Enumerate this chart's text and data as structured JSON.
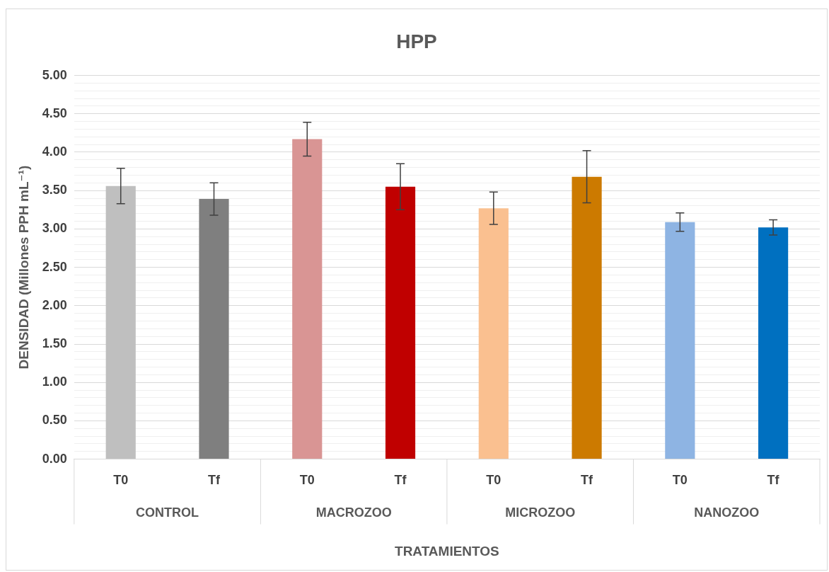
{
  "chart_data": {
    "type": "bar",
    "title": "HPP",
    "xlabel": "TRATAMIENTOS",
    "ylabel": "DENSIDAD (Millones PPH mL⁻¹)",
    "categories": [
      "T0",
      "Tf",
      "T0",
      "Tf",
      "T0",
      "Tf",
      "T0",
      "Tf"
    ],
    "values": [
      3.56,
      3.39,
      4.17,
      3.55,
      3.27,
      3.68,
      3.09,
      3.02
    ],
    "errors": [
      0.23,
      0.21,
      0.22,
      0.3,
      0.21,
      0.34,
      0.12,
      0.1
    ],
    "colors": [
      "#bfbfbf",
      "#7f7f7f",
      "#d99594",
      "#c00000",
      "#fac090",
      "#cc7a00",
      "#8eb4e3",
      "#0070c0"
    ],
    "annotations": [
      "CONTROL",
      "MACROZOO",
      "MICROZOO",
      "NANOZOO"
    ],
    "ylim": [
      0,
      5
    ],
    "yticks": [
      {
        "value": 0,
        "label": "0.00"
      },
      {
        "value": 0.1,
        "label": null
      },
      {
        "value": 0.2,
        "label": null
      },
      {
        "value": 0.3,
        "label": null
      },
      {
        "value": 0.4,
        "label": null
      },
      {
        "value": 0.5,
        "label": "0.50"
      },
      {
        "value": 0.6,
        "label": null
      },
      {
        "value": 0.7,
        "label": null
      },
      {
        "value": 0.8,
        "label": null
      },
      {
        "value": 0.9,
        "label": null
      },
      {
        "value": 1,
        "label": "1.00"
      },
      {
        "value": 1.1,
        "label": null
      },
      {
        "value": 1.2,
        "label": null
      },
      {
        "value": 1.3,
        "label": null
      },
      {
        "value": 1.4,
        "label": null
      },
      {
        "value": 1.5,
        "label": "1.50"
      },
      {
        "value": 1.6,
        "label": null
      },
      {
        "value": 1.7,
        "label": null
      },
      {
        "value": 1.8,
        "label": null
      },
      {
        "value": 1.9,
        "label": null
      },
      {
        "value": 2,
        "label": "2.00"
      },
      {
        "value": 2.1,
        "label": null
      },
      {
        "value": 2.2,
        "label": null
      },
      {
        "value": 2.3,
        "label": null
      },
      {
        "value": 2.4,
        "label": null
      },
      {
        "value": 2.5,
        "label": "2.50"
      },
      {
        "value": 2.6,
        "label": null
      },
      {
        "value": 2.7,
        "label": null
      },
      {
        "value": 2.8,
        "label": null
      },
      {
        "value": 2.9,
        "label": null
      },
      {
        "value": 3,
        "label": "3.00"
      },
      {
        "value": 3.1,
        "label": null
      },
      {
        "value": 3.2,
        "label": null
      },
      {
        "value": 3.3,
        "label": null
      },
      {
        "value": 3.4,
        "label": null
      },
      {
        "value": 3.5,
        "label": "3.50"
      },
      {
        "value": 3.6,
        "label": null
      },
      {
        "value": 3.7,
        "label": null
      },
      {
        "value": 3.8,
        "label": null
      },
      {
        "value": 3.9,
        "label": null
      },
      {
        "value": 4,
        "label": "4.00"
      },
      {
        "value": 4.1,
        "label": null
      },
      {
        "value": 4.2,
        "label": null
      },
      {
        "value": 4.3,
        "label": null
      },
      {
        "value": 4.4,
        "label": null
      },
      {
        "value": 4.5,
        "label": "4.50"
      },
      {
        "value": 4.6,
        "label": null
      },
      {
        "value": 4.7,
        "label": null
      },
      {
        "value": 4.8,
        "label": null
      },
      {
        "value": 4.9,
        "label": null
      },
      {
        "value": 5,
        "label": "5.00"
      }
    ],
    "grid": "y",
    "legend": false
  }
}
